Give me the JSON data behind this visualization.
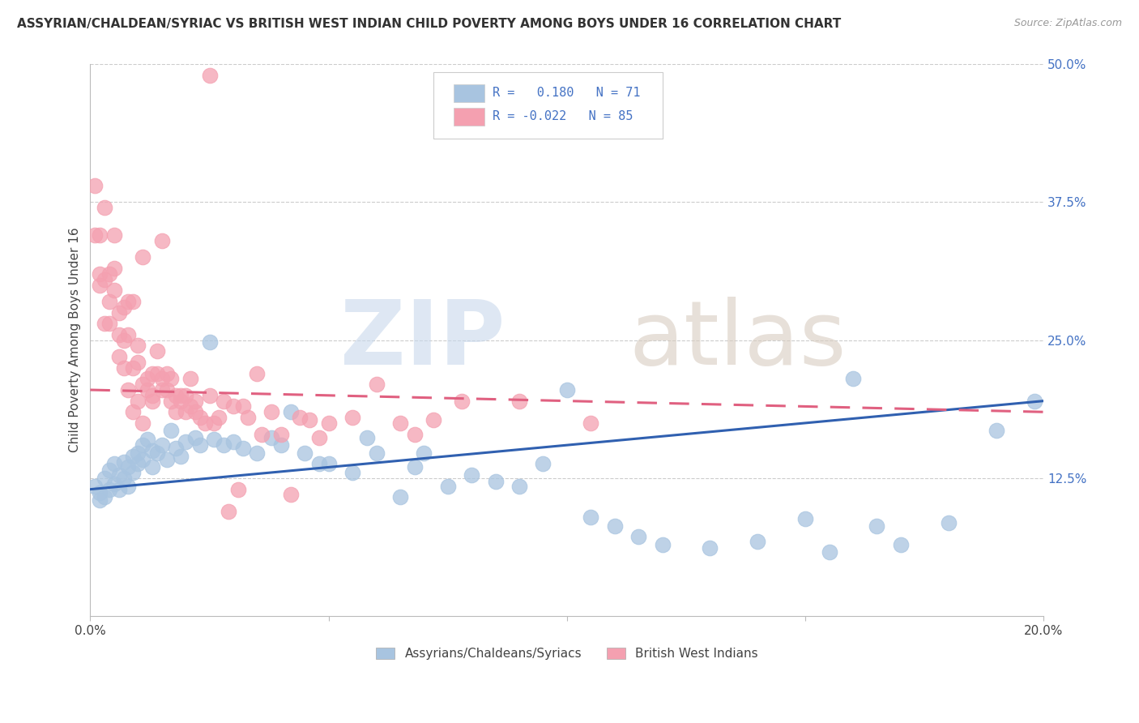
{
  "title": "ASSYRIAN/CHALDEAN/SYRIAC VS BRITISH WEST INDIAN CHILD POVERTY AMONG BOYS UNDER 16 CORRELATION CHART",
  "source": "Source: ZipAtlas.com",
  "ylabel": "Child Poverty Among Boys Under 16",
  "xlim": [
    0.0,
    0.2
  ],
  "ylim": [
    0.0,
    0.5
  ],
  "ytick_labels": [
    "12.5%",
    "25.0%",
    "37.5%",
    "50.0%"
  ],
  "ytick_positions": [
    0.125,
    0.25,
    0.375,
    0.5
  ],
  "legend_labels": [
    "Assyrians/Chaldeans/Syriacs",
    "British West Indians"
  ],
  "blue_color": "#a8c4e0",
  "pink_color": "#f4a0b0",
  "blue_line_color": "#3060b0",
  "pink_line_color": "#e06080",
  "R_blue": 0.18,
  "N_blue": 71,
  "R_pink": -0.022,
  "N_pink": 85,
  "blue_scatter_x": [
    0.001,
    0.002,
    0.002,
    0.003,
    0.003,
    0.004,
    0.004,
    0.005,
    0.005,
    0.006,
    0.006,
    0.007,
    0.007,
    0.008,
    0.008,
    0.009,
    0.009,
    0.01,
    0.01,
    0.011,
    0.011,
    0.012,
    0.013,
    0.013,
    0.014,
    0.015,
    0.016,
    0.017,
    0.018,
    0.019,
    0.02,
    0.022,
    0.023,
    0.025,
    0.026,
    0.028,
    0.03,
    0.032,
    0.035,
    0.038,
    0.04,
    0.042,
    0.045,
    0.048,
    0.05,
    0.055,
    0.058,
    0.06,
    0.065,
    0.068,
    0.07,
    0.075,
    0.08,
    0.085,
    0.09,
    0.095,
    0.1,
    0.105,
    0.11,
    0.115,
    0.12,
    0.13,
    0.14,
    0.15,
    0.155,
    0.16,
    0.165,
    0.17,
    0.18,
    0.19,
    0.198
  ],
  "blue_scatter_y": [
    0.118,
    0.112,
    0.105,
    0.125,
    0.108,
    0.115,
    0.132,
    0.12,
    0.138,
    0.115,
    0.128,
    0.14,
    0.125,
    0.135,
    0.118,
    0.145,
    0.13,
    0.148,
    0.138,
    0.155,
    0.142,
    0.16,
    0.15,
    0.135,
    0.148,
    0.155,
    0.142,
    0.168,
    0.152,
    0.145,
    0.158,
    0.162,
    0.155,
    0.248,
    0.16,
    0.155,
    0.158,
    0.152,
    0.148,
    0.162,
    0.155,
    0.185,
    0.148,
    0.138,
    0.138,
    0.13,
    0.162,
    0.148,
    0.108,
    0.135,
    0.148,
    0.118,
    0.128,
    0.122,
    0.118,
    0.138,
    0.205,
    0.09,
    0.082,
    0.072,
    0.065,
    0.062,
    0.068,
    0.088,
    0.058,
    0.215,
    0.082,
    0.065,
    0.085,
    0.168,
    0.195
  ],
  "pink_scatter_x": [
    0.001,
    0.001,
    0.002,
    0.002,
    0.002,
    0.003,
    0.003,
    0.003,
    0.004,
    0.004,
    0.004,
    0.005,
    0.005,
    0.005,
    0.006,
    0.006,
    0.006,
    0.007,
    0.007,
    0.007,
    0.008,
    0.008,
    0.008,
    0.009,
    0.009,
    0.009,
    0.01,
    0.01,
    0.01,
    0.011,
    0.011,
    0.011,
    0.012,
    0.012,
    0.013,
    0.013,
    0.013,
    0.014,
    0.014,
    0.015,
    0.015,
    0.015,
    0.016,
    0.016,
    0.017,
    0.017,
    0.018,
    0.018,
    0.019,
    0.019,
    0.02,
    0.02,
    0.021,
    0.021,
    0.022,
    0.022,
    0.023,
    0.024,
    0.025,
    0.025,
    0.026,
    0.027,
    0.028,
    0.029,
    0.03,
    0.031,
    0.032,
    0.033,
    0.035,
    0.036,
    0.038,
    0.04,
    0.042,
    0.044,
    0.046,
    0.048,
    0.05,
    0.055,
    0.06,
    0.065,
    0.068,
    0.072,
    0.078,
    0.09,
    0.105
  ],
  "pink_scatter_y": [
    0.39,
    0.345,
    0.3,
    0.345,
    0.31,
    0.265,
    0.305,
    0.37,
    0.285,
    0.265,
    0.31,
    0.295,
    0.315,
    0.345,
    0.255,
    0.235,
    0.275,
    0.225,
    0.28,
    0.25,
    0.205,
    0.255,
    0.285,
    0.185,
    0.225,
    0.285,
    0.195,
    0.245,
    0.23,
    0.175,
    0.21,
    0.325,
    0.205,
    0.215,
    0.2,
    0.22,
    0.195,
    0.24,
    0.22,
    0.205,
    0.215,
    0.34,
    0.205,
    0.22,
    0.195,
    0.215,
    0.185,
    0.2,
    0.2,
    0.195,
    0.185,
    0.2,
    0.19,
    0.215,
    0.195,
    0.185,
    0.18,
    0.175,
    0.2,
    0.49,
    0.175,
    0.18,
    0.195,
    0.095,
    0.19,
    0.115,
    0.19,
    0.18,
    0.22,
    0.165,
    0.185,
    0.165,
    0.11,
    0.18,
    0.178,
    0.162,
    0.175,
    0.18,
    0.21,
    0.175,
    0.165,
    0.178,
    0.195,
    0.195,
    0.175
  ]
}
